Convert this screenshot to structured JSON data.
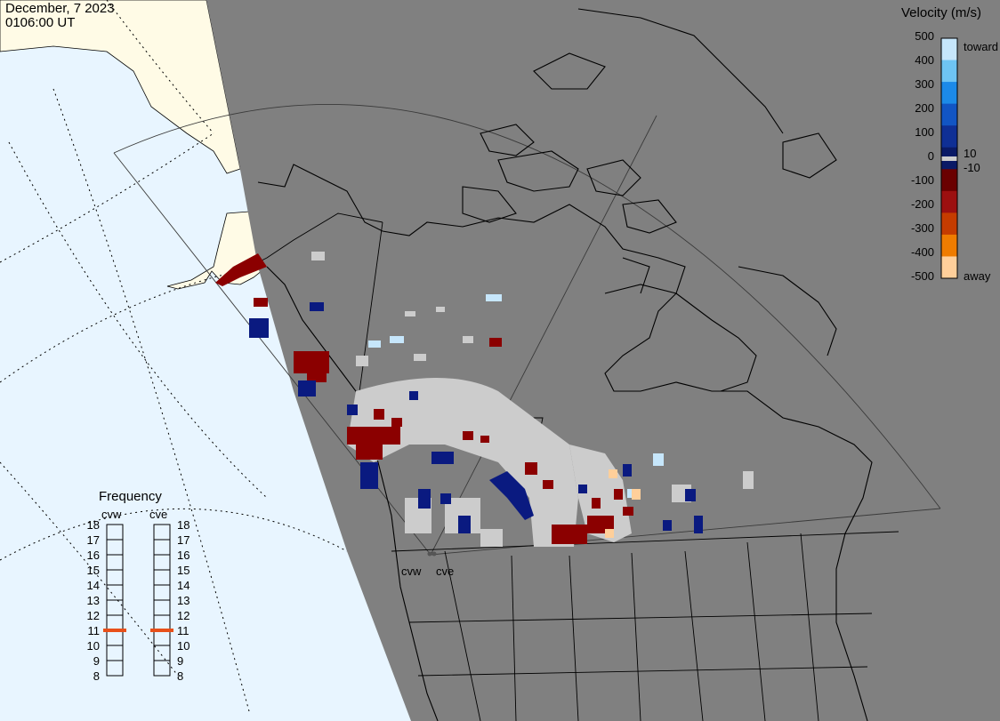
{
  "header": {
    "date": "December, 7 2023",
    "time": "0106:00 UT"
  },
  "colorbar": {
    "title": "Velocity (m/s)",
    "ticks": [
      "500",
      "400",
      "300",
      "200",
      "100",
      "0",
      "-100",
      "-200",
      "-300",
      "-400",
      "-500"
    ],
    "toward_label": "toward",
    "away_label": "away",
    "plus_threshold": "10",
    "minus_threshold": "-10",
    "colors": [
      "#c6e6fb",
      "#6ec4f3",
      "#1c8ae8",
      "#1255c4",
      "#0f2f95",
      "#0a1a66",
      "#6a0000",
      "#9c1010",
      "#c53c00",
      "#ef7c00",
      "#ffcf9a"
    ],
    "zero_color": "#cccccc"
  },
  "radars": [
    {
      "code": "cvw"
    },
    {
      "code": "cve"
    }
  ],
  "frequency": {
    "title": "Frequency",
    "ticks": [
      "18",
      "17",
      "16",
      "15",
      "14",
      "13",
      "12",
      "11",
      "10",
      "9",
      "8"
    ],
    "selected": {
      "cvw": 11,
      "cve": 11
    },
    "marker_color": "#e8501a"
  },
  "map": {
    "ocean_color": "#e8f5ff",
    "dayside_land_color": "#fffbe6",
    "nightside_color": "#808080",
    "ground_scatter_color": "#cccccc"
  }
}
